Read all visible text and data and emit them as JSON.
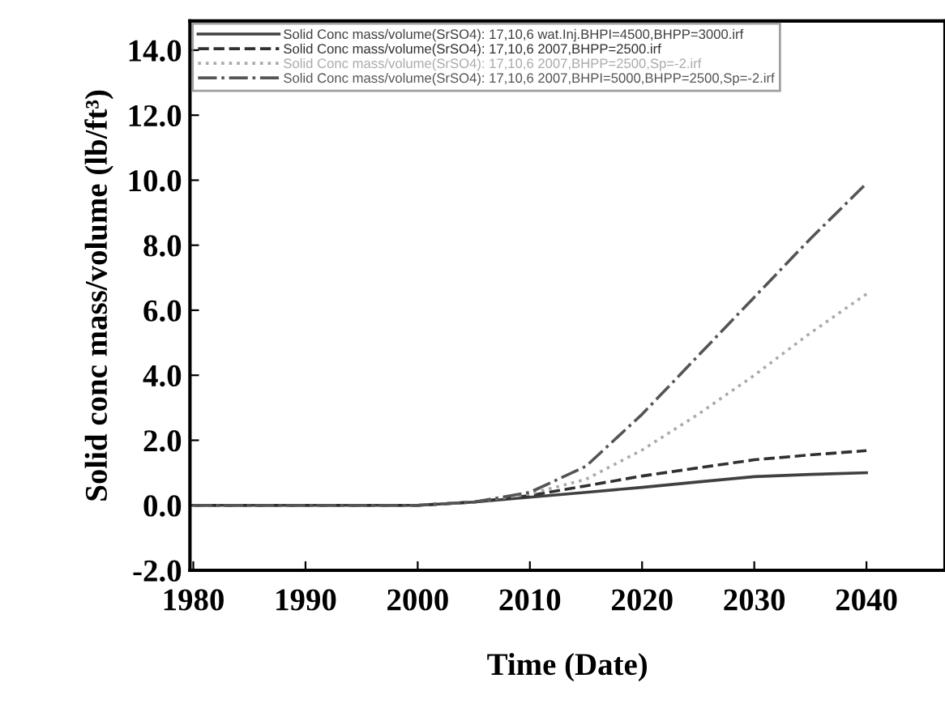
{
  "chart_data": {
    "type": "line",
    "xlabel": "Time (Date)",
    "ylabel": "Solid conc mass/volume (lb/ft³)",
    "x": [
      1980,
      1990,
      2000,
      2005,
      2010,
      2015,
      2020,
      2025,
      2030,
      2035,
      2040
    ],
    "series": [
      {
        "name": "Solid Conc mass/volume(SrSO4): 17,10,6 wat.Inj.BHPI=4500,BHPP=3000.irf",
        "color": "#404040",
        "line_style": "solid",
        "values": [
          0,
          0,
          0,
          0.1,
          0.25,
          0.4,
          0.55,
          0.72,
          0.88,
          0.95,
          1.0
        ]
      },
      {
        "name": "Solid Conc mass/volume(SrSO4): 17,10,6 2007,BHPP=2500.irf",
        "color": "#303030",
        "line_style": "dashed",
        "values": [
          0,
          0,
          0,
          0.1,
          0.3,
          0.6,
          0.9,
          1.15,
          1.4,
          1.55,
          1.68
        ]
      },
      {
        "name": "Solid Conc mass/volume(SrSO4): 17,10,6 2007,BHPP=2500,Sp=-2.irf",
        "color": "#aaaaaa",
        "line_style": "dotted",
        "values": [
          0,
          0,
          0,
          0.1,
          0.35,
          0.8,
          1.7,
          2.8,
          4.0,
          5.3,
          6.5
        ]
      },
      {
        "name": "Solid Conc mass/volume(SrSO4): 17,10,6 2007,BHPI=5000,BHPP=2500,Sp=-2.irf",
        "color": "#555555",
        "line_style": "dashdot",
        "values": [
          0,
          0,
          0,
          0.1,
          0.4,
          1.2,
          2.8,
          4.6,
          6.4,
          8.2,
          9.9
        ]
      }
    ],
    "xlim": [
      1979.7,
      2047
    ],
    "xticks": [
      1980,
      1990,
      2000,
      2010,
      2020,
      2030,
      2040
    ],
    "ylim": [
      -2,
      14.9
    ],
    "yticks": [
      {
        "value": -2,
        "label": "-2.0"
      },
      {
        "value": 0,
        "label": "0.0"
      },
      {
        "value": 2,
        "label": "2.0"
      },
      {
        "value": 4,
        "label": "4.0"
      },
      {
        "value": 6,
        "label": "6.0"
      },
      {
        "value": 8,
        "label": "8.0"
      },
      {
        "value": 10,
        "label": "10.0"
      },
      {
        "value": 12,
        "label": "12.0"
      },
      {
        "value": 14,
        "label": "14.0"
      }
    ],
    "legend": "top left",
    "grid": false,
    "marker": "none"
  }
}
